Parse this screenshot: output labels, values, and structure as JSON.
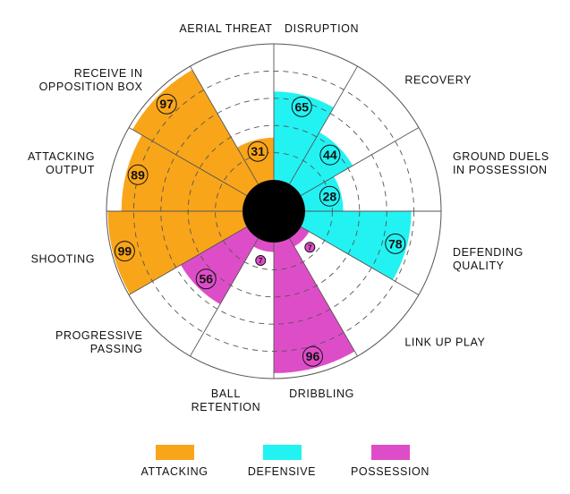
{
  "chart_data": {
    "type": "polar-bar",
    "categories": [
      {
        "label": [
          "DISRUPTION"
        ],
        "value": 65,
        "group": "defensive"
      },
      {
        "label": [
          "RECOVERY"
        ],
        "value": 44,
        "group": "defensive"
      },
      {
        "label": [
          "GROUND DUELS",
          "IN POSSESSION"
        ],
        "value": 28,
        "group": "defensive"
      },
      {
        "label": [
          "DEFENDING",
          "QUALITY"
        ],
        "value": 78,
        "group": "defensive"
      },
      {
        "label": [
          "LINK UP PLAY"
        ],
        "value": 7,
        "group": "possession"
      },
      {
        "label": [
          "DRIBBLING"
        ],
        "value": 96,
        "group": "possession"
      },
      {
        "label": [
          "BALL",
          "RETENTION"
        ],
        "value": 7,
        "group": "possession"
      },
      {
        "label": [
          "PROGRESSIVE",
          "PASSING"
        ],
        "value": 56,
        "group": "possession"
      },
      {
        "label": [
          "SHOOTING"
        ],
        "value": 99,
        "group": "attacking"
      },
      {
        "label": [
          "ATTACKING",
          "OUTPUT"
        ],
        "value": 89,
        "group": "attacking"
      },
      {
        "label": [
          "RECEIVE IN",
          "OPPOSITION BOX"
        ],
        "value": 97,
        "group": "attacking"
      },
      {
        "label": [
          "AERIAL THREAT"
        ],
        "value": 31,
        "group": "attacking"
      }
    ],
    "rlim": [
      0,
      100
    ],
    "grid": true
  },
  "colors": {
    "attacking": "#F9A51A",
    "defensive": "#22F2F2",
    "possession": "#DE4DC8",
    "hub": "#000000",
    "grid": "#555555",
    "text": "#111111"
  },
  "legend": [
    {
      "key": "attacking",
      "label": "ATTACKING"
    },
    {
      "key": "defensive",
      "label": "DEFENSIVE"
    },
    {
      "key": "possession",
      "label": "POSSESSION"
    }
  ]
}
